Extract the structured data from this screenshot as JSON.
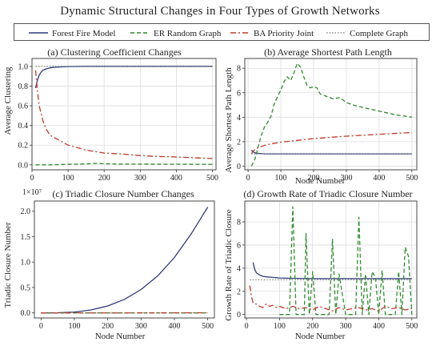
{
  "figure": {
    "title": "Dynamic Structural Changes in Four Types of Growth Networks"
  },
  "legend": {
    "items": [
      {
        "label": "Forest Fire Model",
        "color": "#2e3a7a",
        "dash": "solid"
      },
      {
        "label": "ER Random Graph",
        "color": "#2f8a2f",
        "dash": "dashed"
      },
      {
        "label": "BA Priority Joint",
        "color": "#c0392b",
        "dash": "dashdot"
      },
      {
        "label": "Complete Graph",
        "color": "#777777",
        "dash": "dotted"
      }
    ]
  },
  "chart_data": [
    {
      "id": "a",
      "type": "line",
      "title": "(a) Clustering Coefficient Changes",
      "xlabel": "",
      "ylabel": "Average Clustering",
      "xlim": [
        0,
        510
      ],
      "ylim": [
        -0.05,
        1.08
      ],
      "xticks": [
        0,
        100,
        200,
        300,
        400,
        500
      ],
      "yticks": [
        0.0,
        0.2,
        0.4,
        0.6,
        0.8,
        1.0
      ],
      "ytick_labels": [
        "0.0",
        "0.2",
        "0.4",
        "0.6",
        "0.8",
        "1.0"
      ],
      "grid": true,
      "series": [
        {
          "name": "Forest Fire Model",
          "color": "#2e3a7a",
          "dash": "solid",
          "x": [
            10,
            15,
            20,
            25,
            30,
            40,
            50,
            60,
            80,
            100,
            150,
            200,
            300,
            400,
            500
          ],
          "y": [
            0.78,
            0.86,
            0.91,
            0.94,
            0.96,
            0.975,
            0.985,
            0.99,
            0.995,
            0.998,
            1.0,
            1.0,
            1.0,
            1.0,
            1.0
          ]
        },
        {
          "name": "ER Random Graph",
          "color": "#2f8a2f",
          "dash": "dashed",
          "x": [
            10,
            50,
            100,
            150,
            180,
            200,
            220,
            250,
            300,
            350,
            400,
            450,
            500
          ],
          "y": [
            0.0,
            0.0,
            0.005,
            0.01,
            0.015,
            0.012,
            0.01,
            0.008,
            0.008,
            0.007,
            0.007,
            0.006,
            0.006
          ]
        },
        {
          "name": "BA Priority Joint",
          "color": "#c0392b",
          "dash": "dashdot",
          "x": [
            10,
            15,
            20,
            30,
            40,
            50,
            60,
            80,
            100,
            150,
            200,
            250,
            300,
            350,
            400,
            450,
            500
          ],
          "y": [
            0.96,
            0.75,
            0.6,
            0.45,
            0.36,
            0.3,
            0.28,
            0.24,
            0.2,
            0.15,
            0.12,
            0.11,
            0.095,
            0.085,
            0.08,
            0.072,
            0.065
          ]
        },
        {
          "name": "Complete Graph",
          "color": "#777777",
          "dash": "dotted",
          "x": [
            10,
            500
          ],
          "y": [
            1.0,
            1.0
          ]
        }
      ]
    },
    {
      "id": "b",
      "type": "line",
      "title": "(b) Average Shortest Path Length",
      "xlabel": "Node Number",
      "ylabel": "Average Shortest Path Length",
      "xlim": [
        -10,
        515
      ],
      "ylim": [
        -0.3,
        8.8
      ],
      "xticks": [
        0,
        100,
        200,
        300,
        400,
        500
      ],
      "yticks": [
        0,
        2,
        4,
        6,
        8
      ],
      "ytick_labels": [
        "0",
        "2",
        "4",
        "6",
        "8"
      ],
      "grid": true,
      "series": [
        {
          "name": "Forest Fire Model",
          "color": "#2e3a7a",
          "dash": "solid",
          "x": [
            10,
            15,
            20,
            30,
            50,
            100,
            200,
            300,
            400,
            500
          ],
          "y": [
            1.3,
            1.2,
            1.1,
            1.05,
            1.0,
            1.0,
            1.0,
            1.0,
            1.0,
            1.0
          ]
        },
        {
          "name": "ER Random Graph",
          "color": "#2f8a2f",
          "dash": "dashed",
          "x": [
            10,
            20,
            30,
            40,
            50,
            60,
            70,
            80,
            90,
            100,
            110,
            120,
            130,
            140,
            150,
            160,
            170,
            180,
            190,
            200,
            210,
            220,
            240,
            260,
            280,
            300,
            320,
            350,
            400,
            450,
            500
          ],
          "y": [
            0.0,
            0.5,
            1.5,
            2.5,
            3.2,
            3.6,
            4.1,
            5.1,
            5.7,
            6.2,
            6.9,
            7.3,
            7.0,
            7.6,
            8.4,
            8.1,
            7.3,
            6.6,
            6.4,
            6.5,
            6.4,
            5.9,
            5.7,
            5.5,
            5.6,
            5.2,
            5.0,
            4.8,
            4.5,
            4.2,
            4.0
          ]
        },
        {
          "name": "BA Priority Joint",
          "color": "#c0392b",
          "dash": "dashdot",
          "x": [
            10,
            15,
            20,
            30,
            50,
            75,
            100,
            150,
            200,
            300,
            400,
            500
          ],
          "y": [
            1.0,
            1.2,
            1.35,
            1.5,
            1.7,
            1.85,
            1.95,
            2.1,
            2.25,
            2.45,
            2.6,
            2.75
          ]
        },
        {
          "name": "Complete Graph",
          "color": "#777777",
          "dash": "dotted",
          "x": [
            10,
            500
          ],
          "y": [
            1.0,
            1.0
          ]
        }
      ]
    },
    {
      "id": "c",
      "type": "line",
      "title": "(c) Triadic Closure Number Changes",
      "xlabel": "Node Number",
      "ylabel": "Triadic Closure Number",
      "multiplier_label": "1×10⁷",
      "xlim": [
        -20,
        520
      ],
      "ylim": [
        -0.1,
        2.2
      ],
      "xticks": [
        0,
        100,
        200,
        300,
        400,
        500
      ],
      "yticks": [
        0.0,
        0.5,
        1.0,
        1.5,
        2.0
      ],
      "ytick_labels": [
        "0.0",
        "0.5",
        "1.0",
        "1.5",
        "2.0"
      ],
      "grid": false,
      "series": [
        {
          "name": "Forest Fire Model",
          "color": "#2e3a7a",
          "dash": "solid",
          "x": [
            0,
            50,
            100,
            150,
            200,
            250,
            300,
            350,
            400,
            450,
            500
          ],
          "y": [
            0.0,
            0.002,
            0.017,
            0.058,
            0.136,
            0.265,
            0.459,
            0.729,
            1.09,
            1.55,
            2.08
          ]
        },
        {
          "name": "ER Random Graph",
          "color": "#2f8a2f",
          "dash": "dashed",
          "x": [
            0,
            500
          ],
          "y": [
            0.0,
            0.0
          ]
        },
        {
          "name": "BA Priority Joint",
          "color": "#c0392b",
          "dash": "dashdot",
          "x": [
            0,
            500
          ],
          "y": [
            0.0,
            0.002
          ]
        }
      ]
    },
    {
      "id": "d",
      "type": "line",
      "title": "(d) Growth Rate of Triadic Closure Number",
      "xlabel": "Node Number",
      "ylabel": "Growth Rate of Triadic Closure",
      "xlim": [
        -5,
        515
      ],
      "ylim": [
        -0.3,
        9.8
      ],
      "xticks": [
        0,
        100,
        200,
        300,
        400,
        500
      ],
      "yticks": [
        0,
        2,
        4,
        6,
        8
      ],
      "ytick_labels": [
        "0",
        "2",
        "4",
        "6",
        "8"
      ],
      "grid": true,
      "series": [
        {
          "name": "Forest Fire Model",
          "color": "#2e3a7a",
          "dash": "solid",
          "x": [
            20,
            25,
            30,
            40,
            50,
            60,
            80,
            100,
            150,
            200,
            300,
            400,
            500
          ],
          "y": [
            4.5,
            3.9,
            3.6,
            3.4,
            3.3,
            3.25,
            3.2,
            3.15,
            3.12,
            3.1,
            3.1,
            3.1,
            3.1
          ]
        },
        {
          "name": "ER Random Graph",
          "color": "#2f8a2f",
          "dash": "dashed",
          "x": [
            100,
            115,
            130,
            140,
            150,
            165,
            175,
            180,
            190,
            200,
            210,
            220,
            240,
            250,
            260,
            270,
            280,
            300,
            310,
            320,
            330,
            340,
            350,
            360,
            370,
            380,
            390,
            400,
            410,
            420,
            430,
            440,
            450,
            460,
            470,
            480,
            490,
            500
          ],
          "y": [
            0.0,
            0.0,
            0.0,
            9.3,
            0.0,
            0.0,
            0.0,
            7.0,
            0.0,
            3.7,
            0.0,
            0.0,
            0.0,
            0.0,
            6.5,
            0.0,
            3.5,
            0.0,
            0.0,
            0.0,
            0.0,
            8.4,
            0.0,
            3.5,
            0.0,
            3.7,
            3.2,
            0.0,
            3.8,
            0.0,
            0.0,
            0.0,
            0.0,
            3.7,
            0.0,
            5.8,
            5.0,
            0.0
          ]
        },
        {
          "name": "BA Priority Joint",
          "color": "#c0392b",
          "dash": "dashdot",
          "x": [
            10,
            15,
            20,
            30,
            40,
            50,
            60,
            70,
            80,
            90,
            100,
            120,
            140,
            160,
            180,
            200,
            220,
            240,
            260,
            280,
            300,
            320,
            340,
            360,
            380,
            400,
            420,
            440,
            460,
            480,
            500
          ],
          "y": [
            2.5,
            1.6,
            1.0,
            0.9,
            0.7,
            0.6,
            0.9,
            0.7,
            0.8,
            0.6,
            0.7,
            0.5,
            0.7,
            0.5,
            0.6,
            0.4,
            0.7,
            0.5,
            0.3,
            0.6,
            0.4,
            0.5,
            0.6,
            0.4,
            0.5,
            0.3,
            0.7,
            0.5,
            0.6,
            0.4,
            0.5
          ]
        },
        {
          "name": "Complete Graph",
          "color": "#777777",
          "dash": "dotted",
          "x": [
            10,
            500
          ],
          "y": [
            3.0,
            3.0
          ]
        }
      ]
    }
  ]
}
